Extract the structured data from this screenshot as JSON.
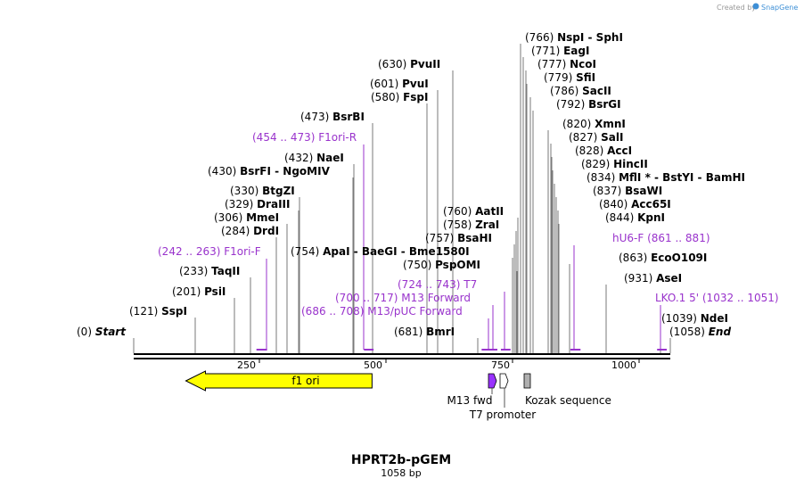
{
  "credit": {
    "prefix": "Created by",
    "brand": "SnapGene"
  },
  "title": "HPRT2b-pGEM",
  "subtitle": "1058 bp",
  "bp_total": 1058,
  "axis_ticks": [
    "250",
    "500",
    "750",
    "1000"
  ],
  "colors": {
    "f1ori": "#ffff00",
    "primer": "#9933cc",
    "m13fwd": "#9933ff",
    "kozak": "#b0b0b0"
  },
  "sites": [
    {
      "name": "Start",
      "pos": "(0)",
      "bp": 0,
      "italic": true
    },
    {
      "name": "SspI",
      "pos": "(121)",
      "bp": 121
    },
    {
      "name": "PsiI",
      "pos": "(201)",
      "bp": 201
    },
    {
      "name": "TaqII",
      "pos": "(233)",
      "bp": 233
    },
    {
      "name": "DrdI",
      "pos": "(284)",
      "bp": 284
    },
    {
      "name": "MmeI",
      "pos": "(306)",
      "bp": 306
    },
    {
      "name": "DraIII",
      "pos": "(329)",
      "bp": 329
    },
    {
      "name": "BtgZI",
      "pos": "(330)",
      "bp": 330
    },
    {
      "name": "BsrFI  -  NgoMIV",
      "pos": "(430)",
      "bp": 430
    },
    {
      "name": "NaeI",
      "pos": "(432)",
      "bp": 432
    },
    {
      "name": "BsrBI",
      "pos": "(473)",
      "bp": 473
    },
    {
      "name": "FspI",
      "pos": "(580)",
      "bp": 580
    },
    {
      "name": "PvuI",
      "pos": "(601)",
      "bp": 601
    },
    {
      "name": "PvuII",
      "pos": "(630)",
      "bp": 630
    },
    {
      "name": "BmrI",
      "pos": "(681)",
      "bp": 681
    },
    {
      "name": "ApaI  -  BaeGI  -  Bme1580I",
      "pos": "(754)",
      "bp": 754
    },
    {
      "name": "PspOMI",
      "pos": "(750)",
      "bp": 750
    },
    {
      "name": "BsaHI",
      "pos": "(757)",
      "bp": 757
    },
    {
      "name": "ZraI",
      "pos": "(758)",
      "bp": 758
    },
    {
      "name": "AatII",
      "pos": "(760)",
      "bp": 760
    },
    {
      "name": "NspI  -  SphI",
      "pos": "(766)",
      "bp": 766
    },
    {
      "name": "EagI",
      "pos": "(771)",
      "bp": 771
    },
    {
      "name": "NcoI",
      "pos": "(777)",
      "bp": 777
    },
    {
      "name": "SfiI",
      "pos": "(779)",
      "bp": 779
    },
    {
      "name": "SacII",
      "pos": "(786)",
      "bp": 786
    },
    {
      "name": "BsrGI",
      "pos": "(792)",
      "bp": 792
    },
    {
      "name": "XmnI",
      "pos": "(820)",
      "bp": 820
    },
    {
      "name": "SalI",
      "pos": "(827)",
      "bp": 827
    },
    {
      "name": "AccI",
      "pos": "(828)",
      "bp": 828
    },
    {
      "name": "HincII",
      "pos": "(829)",
      "bp": 829
    },
    {
      "name": "MflI *  -  BstYI  -  BamHI",
      "pos": "(834)",
      "bp": 834
    },
    {
      "name": "BsaWI",
      "pos": "(837)",
      "bp": 837
    },
    {
      "name": "Acc65I",
      "pos": "(840)",
      "bp": 840
    },
    {
      "name": "KpnI",
      "pos": "(844)",
      "bp": 844
    },
    {
      "name": "EcoO109I",
      "pos": "(863)",
      "bp": 863
    },
    {
      "name": "AseI",
      "pos": "(931)",
      "bp": 931
    },
    {
      "name": "NdeI",
      "pos": "(1039)",
      "bp": 1039
    },
    {
      "name": "End",
      "pos": "(1058)",
      "bp": 1058,
      "italic": true
    }
  ],
  "primers": [
    {
      "name": "F1ori-F",
      "range": "(242 .. 263)",
      "start": 242,
      "end": 263
    },
    {
      "name": "F1ori-R",
      "range": "(454 .. 473)",
      "start": 454,
      "end": 473
    },
    {
      "name": "M13/pUC Forward",
      "range": "(686 .. 708)",
      "start": 686,
      "end": 708
    },
    {
      "name": "M13 Forward",
      "range": "(700 .. 717)",
      "start": 700,
      "end": 717
    },
    {
      "name": "T7",
      "range": "(724 .. 743)",
      "start": 724,
      "end": 743
    },
    {
      "name": "hU6-F",
      "range": "(861 .. 881)",
      "start": 861,
      "end": 881
    },
    {
      "name": "LKO.1 5'",
      "range": "(1032 .. 1051)",
      "start": 1032,
      "end": 1051
    }
  ],
  "features": {
    "f1ori": {
      "label": "f1 ori",
      "start": 36,
      "end": 491
    },
    "m13fwd": {
      "label": "M13 fwd",
      "start": 700,
      "end": 717
    },
    "t7promoter": {
      "label": "T7 promoter",
      "start": 724,
      "end": 743
    },
    "kozak": {
      "label": "Kozak sequence",
      "start": 778,
      "end": 792
    }
  }
}
